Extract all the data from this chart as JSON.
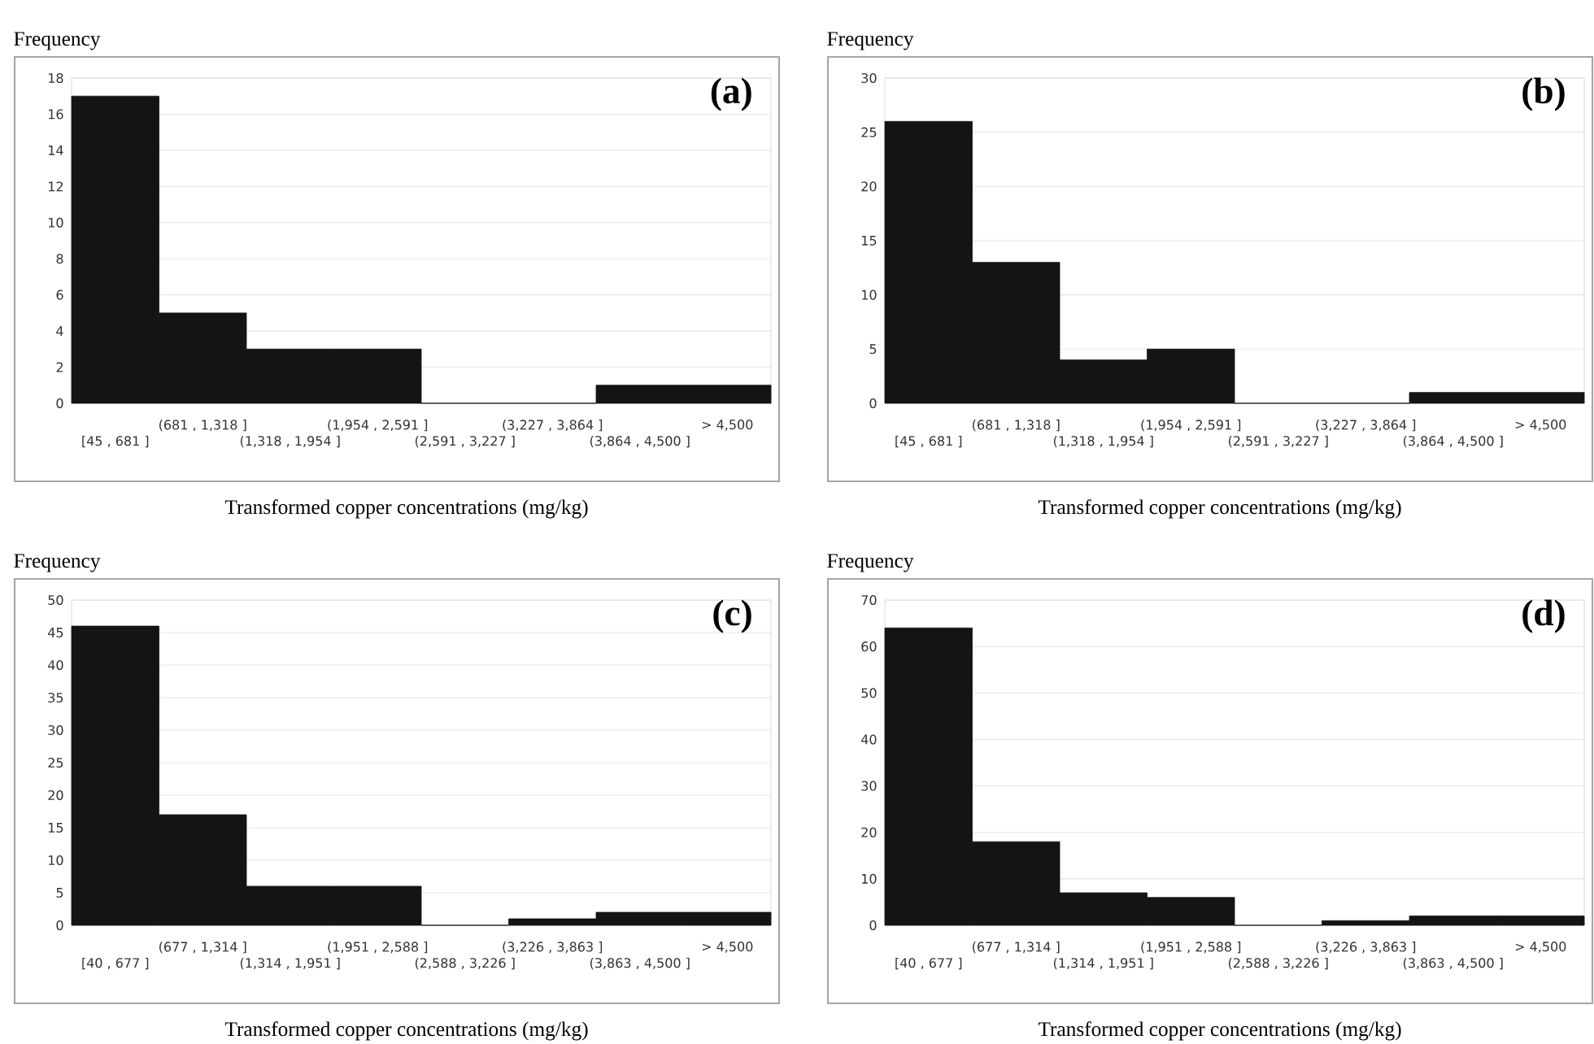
{
  "chart_data": [
    {
      "type": "bar",
      "title": "(a)",
      "ylabel": "Frequency",
      "xlabel": "Transformed copper concentrations (mg/kg)",
      "categories": [
        "[45 , 681 ]",
        "(681 , 1,318 ]",
        "(1,318 , 1,954 ]",
        "(1,954 , 2,591 ]",
        "(2,591 , 3,227 ]",
        "(3,227 , 3,864 ]",
        "(3,864 , 4,500 ]",
        "> 4,500"
      ],
      "values": [
        17,
        5,
        3,
        3,
        0,
        0,
        1,
        1
      ],
      "color": "#141414",
      "ylim": [
        0,
        18
      ],
      "yticks": [
        0,
        2,
        4,
        6,
        8,
        10,
        12,
        14,
        16,
        18
      ],
      "grid": "y"
    },
    {
      "type": "bar",
      "title": "(b)",
      "ylabel": "Frequency",
      "xlabel": "Transformed copper concentrations (mg/kg)",
      "categories": [
        "[45 , 681 ]",
        "(681 , 1,318 ]",
        "(1,318 , 1,954 ]",
        "(1,954 , 2,591 ]",
        "(2,591 , 3,227 ]",
        "(3,227 , 3,864 ]",
        "(3,864 , 4,500 ]",
        "> 4,500"
      ],
      "values": [
        26,
        13,
        4,
        5,
        0,
        0,
        1,
        1
      ],
      "color": "#141414",
      "ylim": [
        0,
        30
      ],
      "yticks": [
        0,
        5,
        10,
        15,
        20,
        25,
        30
      ],
      "grid": "y"
    },
    {
      "type": "bar",
      "title": "(c)",
      "ylabel": "Frequency",
      "xlabel": "Transformed copper concentrations (mg/kg)",
      "categories": [
        "[40 , 677 ]",
        "(677 , 1,314 ]",
        "(1,314 , 1,951 ]",
        "(1,951 , 2,588 ]",
        "(2,588 , 3,226 ]",
        "(3,226 , 3,863 ]",
        "(3,863 , 4,500 ]",
        "> 4,500"
      ],
      "values": [
        46,
        17,
        6,
        6,
        0,
        1,
        2,
        2
      ],
      "color": "#141414",
      "ylim": [
        0,
        50
      ],
      "yticks": [
        0,
        5,
        10,
        15,
        20,
        25,
        30,
        35,
        40,
        45,
        50
      ],
      "grid": "y"
    },
    {
      "type": "bar",
      "title": "(d)",
      "ylabel": "Frequency",
      "xlabel": "Transformed copper concentrations (mg/kg)",
      "categories": [
        "[40 , 677 ]",
        "(677 , 1,314 ]",
        "(1,314 , 1,951 ]",
        "(1,951 , 2,588 ]",
        "(2,588 , 3,226 ]",
        "(3,226 , 3,863 ]",
        "(3,863 , 4,500 ]",
        "> 4,500"
      ],
      "values": [
        64,
        18,
        7,
        6,
        0,
        1,
        2,
        2
      ],
      "color": "#141414",
      "ylim": [
        0,
        70
      ],
      "yticks": [
        0,
        10,
        20,
        30,
        40,
        50,
        60,
        70
      ],
      "grid": "y"
    }
  ]
}
